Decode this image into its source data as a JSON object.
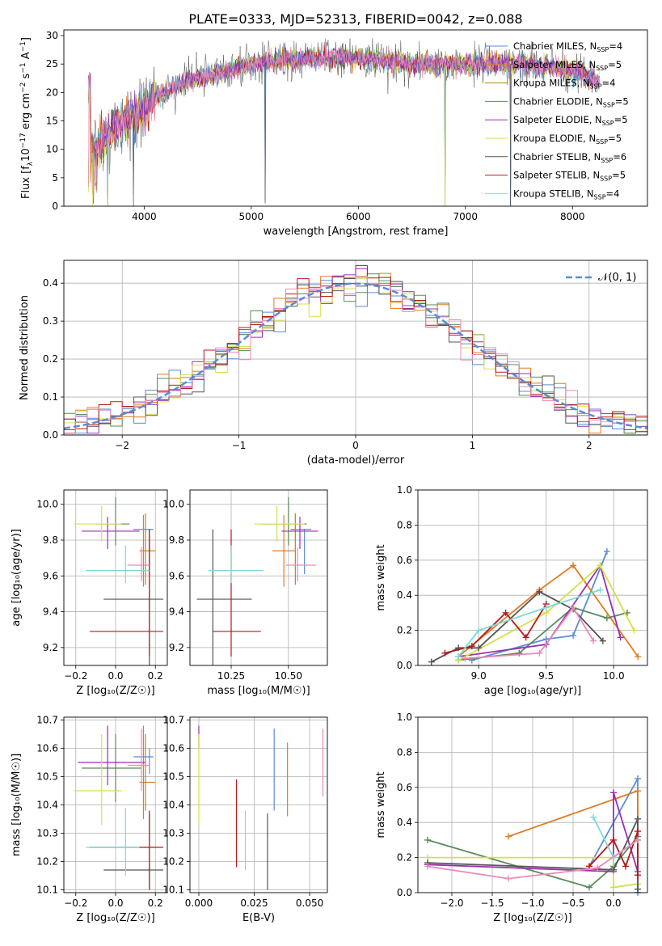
{
  "title": "PLATE=0333, MJD=52313, FIBERID=0042, z=0.088",
  "colors": [
    "#5b8bd6",
    "#e07b20",
    "#b8860b",
    "#5a8a5a",
    "#9a2fb0",
    "#d4e04a",
    "#555555",
    "#b51a1a",
    "#7dd9d9",
    "#e88ab8"
  ],
  "legend": [
    {
      "model": "Chabrier MILES",
      "n": "4",
      "color": "#5b8bd6"
    },
    {
      "model": "Salpeter MILES",
      "n": "5",
      "color": "#e07b20"
    },
    {
      "model": "Kroupa MILES",
      "n": "4",
      "color": "#b8860b"
    },
    {
      "model": "Chabrier ELODIE",
      "n": "5",
      "color": "#5a8a5a"
    },
    {
      "model": "Salpeter ELODIE",
      "n": "5",
      "color": "#9a2fb0"
    },
    {
      "model": "Kroupa ELODIE",
      "n": "5",
      "color": "#d4e04a"
    },
    {
      "model": "Chabrier STELIB",
      "n": "6",
      "color": "#555555"
    },
    {
      "model": "Salpeter STELIB",
      "n": "5",
      "color": "#b51a1a"
    },
    {
      "model": "Kroupa STELIB",
      "n": "4",
      "color": "#7dd9d9"
    }
  ],
  "chart_data": [
    {
      "id": "spectrum",
      "type": "line",
      "xlabel": "wavelength [Angstrom, rest frame]",
      "ylabel_pre": "Flux [f",
      "ylabel_sub": "λ",
      "ylabel_mid": "10",
      "ylabel_sup1": "−17",
      "ylabel_post": " erg cm",
      "ylabel_sup2": "−2",
      "ylabel_post2": " s",
      "ylabel_sup3": "−1",
      "ylabel_post3": " A",
      "ylabel_sup4": "−1",
      "ylabel_end": "]",
      "xlim": [
        3250,
        8700
      ],
      "ylim": [
        0,
        31
      ],
      "xticks": [
        4000,
        5000,
        6000,
        7000,
        8000
      ],
      "yticks": [
        0,
        5,
        10,
        15,
        20,
        25,
        30
      ],
      "anchors": [
        [
          3500,
          9
        ],
        [
          3600,
          11
        ],
        [
          3700,
          13
        ],
        [
          3800,
          15
        ],
        [
          3900,
          16
        ],
        [
          4000,
          17
        ],
        [
          4100,
          19
        ],
        [
          4200,
          20
        ],
        [
          4300,
          21
        ],
        [
          4400,
          22
        ],
        [
          4600,
          23
        ],
        [
          4800,
          24
        ],
        [
          5000,
          25
        ],
        [
          5500,
          26
        ],
        [
          6000,
          26
        ],
        [
          6500,
          25
        ],
        [
          7000,
          25
        ],
        [
          7500,
          25
        ],
        [
          8000,
          24
        ],
        [
          8250,
          22
        ]
      ],
      "dips": [
        [
          3520,
          1
        ],
        [
          3660,
          0
        ],
        [
          3900,
          2
        ],
        [
          5130,
          1
        ],
        [
          6810,
          0
        ],
        [
          7420,
          0
        ]
      ]
    },
    {
      "id": "residuals",
      "type": "histogram",
      "xlabel": "(data-model)/error",
      "ylabel": "Normed distribution",
      "xlim": [
        -2.5,
        2.5
      ],
      "ylim": [
        0,
        0.46
      ],
      "xticks": [
        -2,
        -1,
        0,
        1,
        2
      ],
      "yticks": [
        0.0,
        0.1,
        0.2,
        0.3,
        0.4
      ],
      "bin_width": 0.1,
      "reference_label": "𝒩(0, 1)",
      "reference_color": "#5b8bd6"
    },
    {
      "id": "age-vs-Z",
      "type": "errorbar",
      "xlabel": "Z [log₁₀(Z/Z☉)]",
      "ylabel": "age  [log₁₀(age/yr)]",
      "xlim": [
        -0.26,
        0.26
      ],
      "ylim": [
        9.1,
        10.08
      ],
      "xticks": [
        -0.2,
        0.0,
        0.2
      ],
      "yticks": [
        9.2,
        9.4,
        9.6,
        9.8,
        10.0
      ],
      "points": [
        {
          "x": 0.17,
          "xerr": [
            0.08,
            0.02
          ],
          "y": 9.86,
          "yerr": [
            0.25,
            0.0
          ],
          "color": "#5b8bd6"
        },
        {
          "x": 0.14,
          "xerr": [
            0.02,
            0.06
          ],
          "y": 9.74,
          "yerr": [
            0.2,
            0.2
          ],
          "color": "#e07b20"
        },
        {
          "x": 0.15,
          "xerr": [
            0.0,
            0.0
          ],
          "y": 9.7,
          "yerr": [
            0.15,
            0.25
          ],
          "color": "#b8860b"
        },
        {
          "x": 0.0,
          "xerr": [
            0.1,
            0.07
          ],
          "y": 9.89,
          "yerr": [
            0.12,
            0.15
          ],
          "color": "#5a8a5a"
        },
        {
          "x": -0.04,
          "xerr": [
            0.13,
            0.16
          ],
          "y": 9.85,
          "yerr": [
            0.1,
            0.08
          ],
          "color": "#9a2fb0"
        },
        {
          "x": -0.07,
          "xerr": [
            0.14,
            0.1
          ],
          "y": 9.89,
          "yerr": [
            0.1,
            0.1
          ],
          "color": "#d4e04a"
        },
        {
          "x": 0.17,
          "xerr": [
            0.23,
            0.07
          ],
          "y": 9.47,
          "yerr": [
            0.38,
            0.39
          ],
          "color": "#555555"
        },
        {
          "x": 0.17,
          "xerr": [
            0.3,
            0.07
          ],
          "y": 9.29,
          "yerr": [
            0.14,
            0.57
          ],
          "color": "#b51a1a"
        },
        {
          "x": 0.05,
          "xerr": [
            0.2,
            0.12
          ],
          "y": 9.63,
          "yerr": [
            0.07,
            0.14
          ],
          "color": "#7dd9d9"
        },
        {
          "x": 0.13,
          "xerr": [
            0.07,
            0.04
          ],
          "y": 9.66,
          "yerr": [
            0.09,
            0.1
          ],
          "color": "#e88ab8"
        }
      ]
    },
    {
      "id": "age-vs-mass",
      "type": "errorbar",
      "xlabel": "mass [log₁₀(M/M☉)]",
      "ylabel": "",
      "xlim": [
        10.07,
        10.67
      ],
      "ylim": [
        9.1,
        10.08
      ],
      "xticks": [
        10.25,
        10.5
      ],
      "yticks": [
        9.2,
        9.4,
        9.6,
        9.8,
        10.0
      ],
      "points": [
        {
          "x": 10.57,
          "xerr": [
            0.06,
            0.03
          ],
          "y": 9.86,
          "yerr": [
            0.25,
            0.0
          ],
          "color": "#5b8bd6"
        },
        {
          "x": 10.48,
          "xerr": [
            0.05,
            0.05
          ],
          "y": 9.74,
          "yerr": [
            0.2,
            0.2
          ],
          "color": "#e07b20"
        },
        {
          "x": 10.53,
          "xerr": [
            0.0,
            0.0
          ],
          "y": 9.7,
          "yerr": [
            0.15,
            0.25
          ],
          "color": "#b8860b"
        },
        {
          "x": 10.5,
          "xerr": [
            0.12,
            0.08
          ],
          "y": 9.89,
          "yerr": [
            0.12,
            0.15
          ],
          "color": "#5a8a5a"
        },
        {
          "x": 10.55,
          "xerr": [
            0.08,
            0.08
          ],
          "y": 9.85,
          "yerr": [
            0.1,
            0.08
          ],
          "color": "#9a2fb0"
        },
        {
          "x": 10.45,
          "xerr": [
            0.1,
            0.12
          ],
          "y": 9.89,
          "yerr": [
            0.1,
            0.1
          ],
          "color": "#d4e04a"
        },
        {
          "x": 10.17,
          "xerr": [
            0.07,
            0.17
          ],
          "y": 9.47,
          "yerr": [
            0.38,
            0.39
          ],
          "color": "#555555"
        },
        {
          "x": 10.25,
          "xerr": [
            0.08,
            0.13
          ],
          "y": 9.29,
          "yerr": [
            0.14,
            0.57
          ],
          "color": "#b51a1a"
        },
        {
          "x": 10.25,
          "xerr": [
            0.1,
            0.14
          ],
          "y": 9.63,
          "yerr": [
            0.07,
            0.14
          ],
          "color": "#7dd9d9"
        },
        {
          "x": 10.54,
          "xerr": [
            0.05,
            0.08
          ],
          "y": 9.66,
          "yerr": [
            0.09,
            0.1
          ],
          "color": "#e88ab8"
        }
      ]
    },
    {
      "id": "weight-vs-age",
      "type": "line",
      "xlabel": "age  [log₁₀(age/yr)]",
      "ylabel": "mass weight",
      "xlim": [
        8.55,
        10.25
      ],
      "ylim": [
        0,
        1.0
      ],
      "xticks": [
        9.0,
        9.5,
        10.0
      ],
      "yticks": [
        0.0,
        0.2,
        0.4,
        0.6,
        0.8,
        1.0
      ],
      "series": [
        {
          "color": "#5b8bd6",
          "x": [
            8.95,
            9.5,
            9.7,
            9.95
          ],
          "y": [
            0.03,
            0.15,
            0.17,
            0.65
          ]
        },
        {
          "color": "#e07b20",
          "x": [
            8.85,
            9.45,
            9.7,
            10.18
          ],
          "y": [
            0.05,
            0.43,
            0.57,
            0.05
          ]
        },
        {
          "color": "#5a8a5a",
          "x": [
            8.85,
            9.3,
            9.7,
            9.95,
            10.1
          ],
          "y": [
            0.03,
            0.07,
            0.33,
            0.27,
            0.3
          ]
        },
        {
          "color": "#9a2fb0",
          "x": [
            8.85,
            9.5,
            9.9,
            10.05
          ],
          "y": [
            0.05,
            0.12,
            0.57,
            0.16
          ]
        },
        {
          "color": "#d4e04a",
          "x": [
            8.85,
            9.5,
            9.9,
            10.15
          ],
          "y": [
            0.03,
            0.3,
            0.57,
            0.2
          ]
        },
        {
          "color": "#555555",
          "x": [
            8.65,
            8.85,
            9.0,
            9.45,
            9.7,
            9.92
          ],
          "y": [
            0.02,
            0.1,
            0.1,
            0.42,
            0.32,
            0.14
          ]
        },
        {
          "color": "#b51a1a",
          "x": [
            8.75,
            8.95,
            9.2,
            9.35,
            9.5
          ],
          "y": [
            0.07,
            0.11,
            0.3,
            0.16,
            0.35
          ]
        },
        {
          "color": "#7dd9d9",
          "x": [
            8.85,
            9.0,
            9.5,
            9.9
          ],
          "y": [
            0.05,
            0.2,
            0.33,
            0.43
          ]
        },
        {
          "color": "#e88ab8",
          "x": [
            8.9,
            9.45,
            9.7,
            9.85
          ],
          "y": [
            0.04,
            0.07,
            0.33,
            0.14
          ]
        }
      ]
    },
    {
      "id": "mass-vs-Z",
      "type": "errorbar",
      "xlabel": "Z [log₁₀(Z/Z☉)]",
      "ylabel": "mass [log₁₀(M/M☉)]",
      "xlim": [
        -0.26,
        0.26
      ],
      "ylim": [
        10.09,
        10.71
      ],
      "xticks": [
        -0.2,
        0.0,
        0.2
      ],
      "yticks": [
        10.1,
        10.2,
        10.3,
        10.4,
        10.5,
        10.6,
        10.7
      ],
      "points": [
        {
          "x": 0.17,
          "xerr": [
            0.08,
            0.02
          ],
          "y": 10.57,
          "yerr": [
            0.06,
            0.03
          ],
          "color": "#5b8bd6"
        },
        {
          "x": 0.14,
          "xerr": [
            0.02,
            0.06
          ],
          "y": 10.48,
          "yerr": [
            0.13,
            0.2
          ],
          "color": "#e07b20"
        },
        {
          "x": 0.15,
          "xerr": [
            0.0,
            0.0
          ],
          "y": 10.53,
          "yerr": [
            0.15,
            0.12
          ],
          "color": "#b8860b"
        },
        {
          "x": 0.0,
          "xerr": [
            0.17,
            0.13
          ],
          "y": 10.53,
          "yerr": [
            0.12,
            0.12
          ],
          "color": "#5a8a5a"
        },
        {
          "x": -0.04,
          "xerr": [
            0.15,
            0.19
          ],
          "y": 10.55,
          "yerr": [
            0.08,
            0.13
          ],
          "color": "#9a2fb0"
        },
        {
          "x": -0.07,
          "xerr": [
            0.14,
            0.1
          ],
          "y": 10.45,
          "yerr": [
            0.12,
            0.2
          ],
          "color": "#d4e04a"
        },
        {
          "x": 0.17,
          "xerr": [
            0.23,
            0.07
          ],
          "y": 10.17,
          "yerr": [
            0.07,
            0.2
          ],
          "color": "#555555"
        },
        {
          "x": 0.17,
          "xerr": [
            0.3,
            0.07
          ],
          "y": 10.25,
          "yerr": [
            0.15,
            0.13
          ],
          "color": "#b51a1a"
        },
        {
          "x": 0.05,
          "xerr": [
            0.2,
            0.07
          ],
          "y": 10.25,
          "yerr": [
            0.1,
            0.14
          ],
          "color": "#7dd9d9"
        },
        {
          "x": 0.13,
          "xerr": [
            0.07,
            0.04
          ],
          "y": 10.54,
          "yerr": [
            0.09,
            0.13
          ],
          "color": "#e88ab8"
        }
      ]
    },
    {
      "id": "mass-vs-ebv",
      "type": "errorbar",
      "xlabel": "E(B-V)",
      "ylabel": "",
      "xlim": [
        -0.004,
        0.058
      ],
      "ylim": [
        10.09,
        10.71
      ],
      "xticks": [
        0.0,
        0.025,
        0.05
      ],
      "yticks": [
        10.1,
        10.2,
        10.3,
        10.4,
        10.5,
        10.6,
        10.7
      ],
      "points": [
        {
          "x": 0.034,
          "y": 10.57,
          "yerr": [
            0.19,
            0.1
          ],
          "color": "#5b8bd6"
        },
        {
          "x": 0.04,
          "y": 10.48,
          "yerr": [
            0.12,
            0.14
          ],
          "color": "#e07b20"
        },
        {
          "x": 0.0,
          "y": 10.66,
          "yerr": [
            0.06,
            0.02
          ],
          "color": "#9a2fb0"
        },
        {
          "x": 0.0,
          "y": 10.45,
          "yerr": [
            0.12,
            0.2
          ],
          "color": "#d4e04a"
        },
        {
          "x": 0.031,
          "y": 10.27,
          "yerr": [
            0.17,
            0.1
          ],
          "color": "#555555"
        },
        {
          "x": 0.017,
          "y": 10.33,
          "yerr": [
            0.15,
            0.16
          ],
          "color": "#b51a1a"
        },
        {
          "x": 0.021,
          "y": 10.27,
          "yerr": [
            0.1,
            0.11
          ],
          "color": "#7dd9d9"
        },
        {
          "x": 0.056,
          "y": 10.55,
          "yerr": [
            0.12,
            0.12
          ],
          "color": "#e88ab8"
        }
      ]
    },
    {
      "id": "weight-vs-Z",
      "type": "line",
      "xlabel": "Z [log₁₀(Z/Z☉)]",
      "ylabel": "mass weight",
      "xlim": [
        -2.42,
        0.42
      ],
      "ylim": [
        0,
        1.0
      ],
      "xticks": [
        -2.0,
        -1.5,
        -1.0,
        -0.5,
        0.0
      ],
      "yticks": [
        0.0,
        0.2,
        0.4,
        0.6,
        0.8,
        1.0
      ],
      "series": [
        {
          "color": "#5b8bd6",
          "x": [
            -0.3,
            0.3,
            0.3
          ],
          "y": [
            0.15,
            0.65,
            0.0
          ]
        },
        {
          "color": "#e07b20",
          "x": [
            -1.3,
            0.3,
            0.3
          ],
          "y": [
            0.32,
            0.58,
            0.05
          ]
        },
        {
          "color": "#5a8a5a",
          "x": [
            -2.3,
            -0.3,
            0.0,
            0.3,
            0.3
          ],
          "y": [
            0.3,
            0.03,
            0.15,
            0.32,
            0.1
          ]
        },
        {
          "color": "#9a2fb0",
          "x": [
            -2.3,
            0.0,
            0.0,
            0.3
          ],
          "y": [
            0.16,
            0.12,
            0.57,
            0.12
          ]
        },
        {
          "color": "#d4e04a",
          "x": [
            -2.3,
            0.0,
            0.0,
            0.3
          ],
          "y": [
            0.2,
            0.2,
            0.03,
            0.05
          ]
        },
        {
          "color": "#555555",
          "x": [
            -2.3,
            0.0,
            0.3,
            0.3,
            0.3
          ],
          "y": [
            0.17,
            0.13,
            0.42,
            0.02,
            0.3
          ]
        },
        {
          "color": "#b51a1a",
          "x": [
            -0.3,
            0.0,
            0.15,
            0.3,
            0.3
          ],
          "y": [
            0.15,
            0.3,
            0.15,
            0.35,
            0.1
          ]
        },
        {
          "color": "#7dd9d9",
          "x": [
            -0.25,
            0.0,
            0.3
          ],
          "y": [
            0.43,
            0.2,
            0.3
          ]
        },
        {
          "color": "#e88ab8",
          "x": [
            -2.3,
            -1.3,
            -0.2,
            0.3
          ],
          "y": [
            0.15,
            0.08,
            0.14,
            0.3
          ]
        }
      ]
    }
  ]
}
